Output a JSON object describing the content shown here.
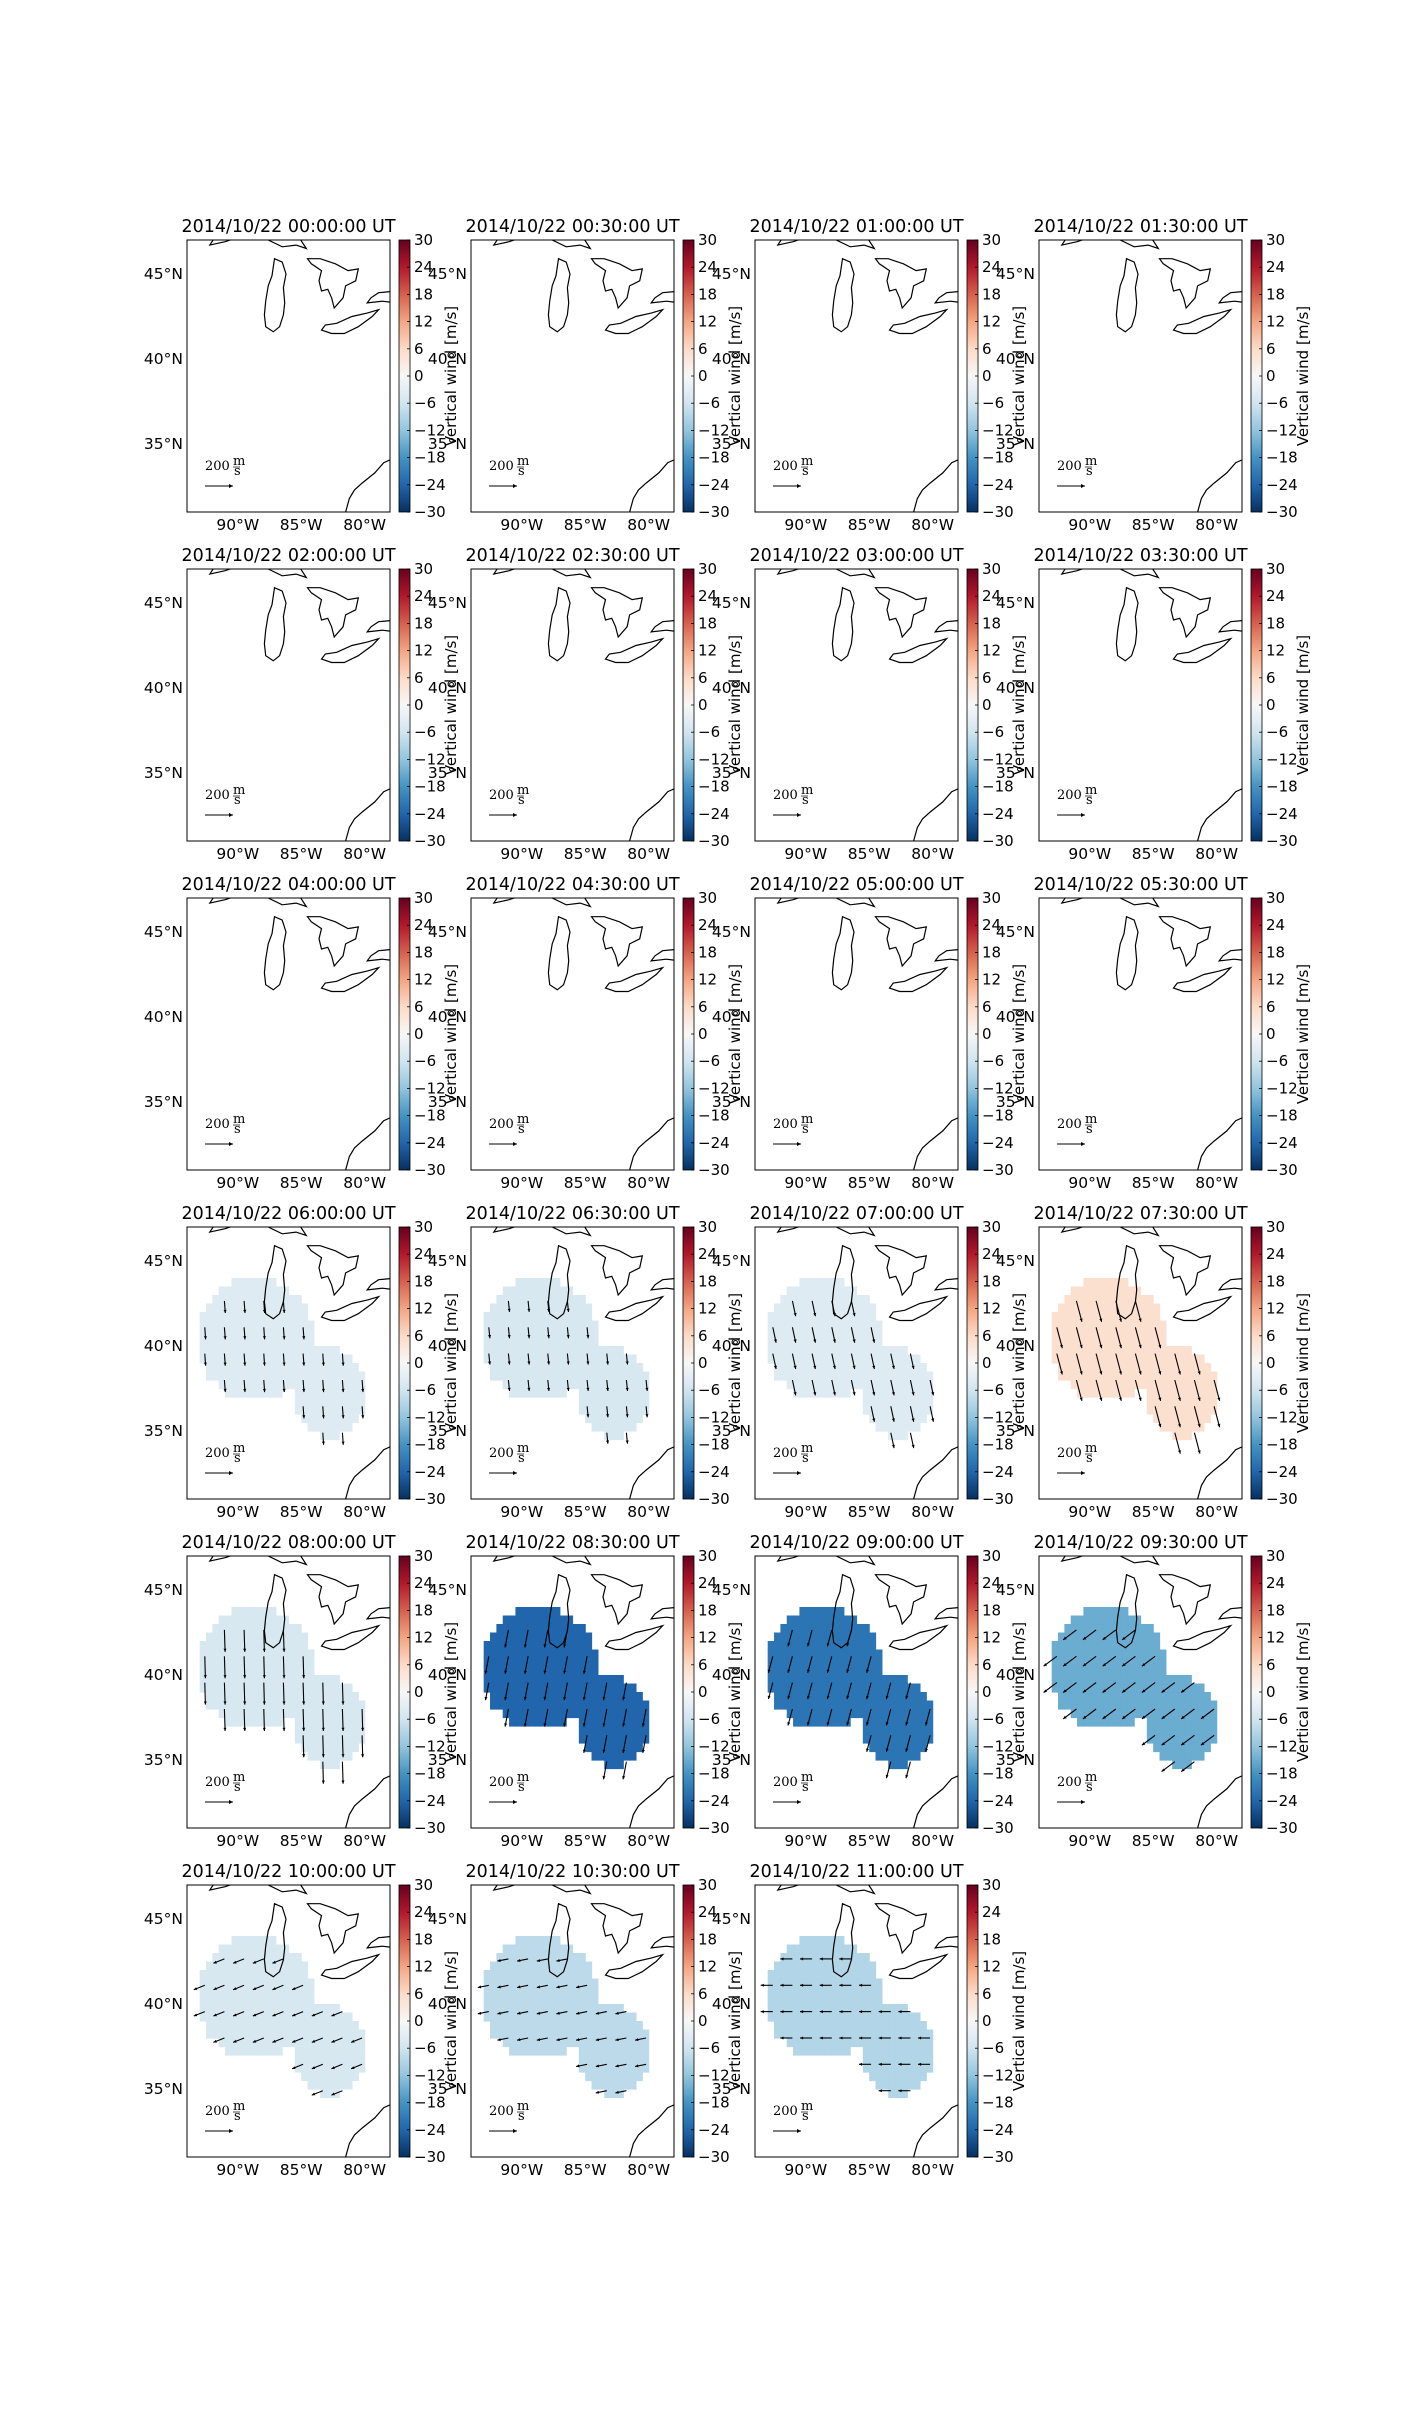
{
  "figure": {
    "rows": 6,
    "cols": 4,
    "colorbar_label": "Vertical wind [m/s]",
    "colorbar_ticks": [
      "30",
      "24",
      "18",
      "12",
      "6",
      "0",
      "−6",
      "−12",
      "−18",
      "−24",
      "−30"
    ],
    "colorbar_colors": [
      "#67001f",
      "#b2182b",
      "#d6604d",
      "#f4a582",
      "#fddbc7",
      "#f7f7f7",
      "#d1e5f0",
      "#92c5de",
      "#4393c3",
      "#2166ac",
      "#053061"
    ],
    "lat_labels": [
      "45°N",
      "40°N",
      "35°N"
    ],
    "lon_labels": [
      "90°W",
      "85°W",
      "80°W"
    ],
    "quiver_key": {
      "value": "200",
      "unit_num": "m",
      "unit_den": "s"
    }
  },
  "chart_data": {
    "type": "heatmap",
    "title": "",
    "colorbar_label": "Vertical wind [m/s]",
    "colorbar_range": [
      -30,
      30
    ],
    "colorbar_ticks": [
      30,
      24,
      18,
      12,
      6,
      0,
      -6,
      -12,
      -18,
      -24,
      -30
    ],
    "colormap": "diverging red-white-blue",
    "lat_range": [
      31,
      47
    ],
    "lon_range": [
      -94,
      -78
    ],
    "lat_ticks": [
      45,
      40,
      35
    ],
    "lon_ticks": [
      -90,
      -85,
      -80
    ],
    "quiver_key_value": "200 m/s",
    "panels": [
      {
        "time": "2014/10/22 00:00:00 UT",
        "vertical_wind": null,
        "arrow_dx": 0,
        "arrow_dy": 0
      },
      {
        "time": "2014/10/22 00:30:00 UT",
        "vertical_wind": null,
        "arrow_dx": 0,
        "arrow_dy": 0
      },
      {
        "time": "2014/10/22 01:00:00 UT",
        "vertical_wind": null,
        "arrow_dx": 0,
        "arrow_dy": 0
      },
      {
        "time": "2014/10/22 01:30:00 UT",
        "vertical_wind": null,
        "arrow_dx": 0,
        "arrow_dy": 0
      },
      {
        "time": "2014/10/22 02:00:00 UT",
        "vertical_wind": null,
        "arrow_dx": 0,
        "arrow_dy": 0
      },
      {
        "time": "2014/10/22 02:30:00 UT",
        "vertical_wind": null,
        "arrow_dx": 0,
        "arrow_dy": 0
      },
      {
        "time": "2014/10/22 03:00:00 UT",
        "vertical_wind": null,
        "arrow_dx": 0,
        "arrow_dy": 0
      },
      {
        "time": "2014/10/22 03:30:00 UT",
        "vertical_wind": null,
        "arrow_dx": 0,
        "arrow_dy": 0
      },
      {
        "time": "2014/10/22 04:00:00 UT",
        "vertical_wind": null,
        "arrow_dx": 0,
        "arrow_dy": 0
      },
      {
        "time": "2014/10/22 04:30:00 UT",
        "vertical_wind": null,
        "arrow_dx": 0,
        "arrow_dy": 0
      },
      {
        "time": "2014/10/22 05:00:00 UT",
        "vertical_wind": null,
        "arrow_dx": 0,
        "arrow_dy": 0
      },
      {
        "time": "2014/10/22 05:30:00 UT",
        "vertical_wind": null,
        "arrow_dx": 0,
        "arrow_dy": 0
      },
      {
        "time": "2014/10/22 06:00:00 UT",
        "vertical_wind": -4,
        "arrow_dx": 0.04,
        "arrow_dy": -0.55
      },
      {
        "time": "2014/10/22 06:30:00 UT",
        "vertical_wind": -5,
        "arrow_dx": 0.05,
        "arrow_dy": -0.5
      },
      {
        "time": "2014/10/22 07:00:00 UT",
        "vertical_wind": -4,
        "arrow_dx": 0.15,
        "arrow_dy": -0.7
      },
      {
        "time": "2014/10/22 07:30:00 UT",
        "vertical_wind": 5,
        "arrow_dx": 0.25,
        "arrow_dy": -0.95
      },
      {
        "time": "2014/10/22 08:00:00 UT",
        "vertical_wind": -5,
        "arrow_dx": 0.03,
        "arrow_dy": -1.0
      },
      {
        "time": "2014/10/22 08:30:00 UT",
        "vertical_wind": -24,
        "arrow_dx": -0.15,
        "arrow_dy": -0.8
      },
      {
        "time": "2014/10/22 09:00:00 UT",
        "vertical_wind": -22,
        "arrow_dx": -0.2,
        "arrow_dy": -0.75
      },
      {
        "time": "2014/10/22 09:30:00 UT",
        "vertical_wind": -15,
        "arrow_dx": -0.6,
        "arrow_dy": -0.45
      },
      {
        "time": "2014/10/22 10:00:00 UT",
        "vertical_wind": -5,
        "arrow_dx": -0.5,
        "arrow_dy": -0.2
      },
      {
        "time": "2014/10/22 10:30:00 UT",
        "vertical_wind": -8,
        "arrow_dx": -0.5,
        "arrow_dy": -0.1
      },
      {
        "time": "2014/10/22 11:00:00 UT",
        "vertical_wind": -9,
        "arrow_dx": -0.55,
        "arrow_dy": 0.0
      }
    ]
  }
}
